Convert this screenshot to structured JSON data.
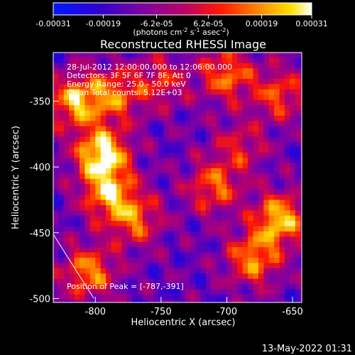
{
  "chart_data": {
    "type": "heatmap",
    "title": "Reconstructed RHESSI Image",
    "xlabel": "Heliocentric X (arcsec)",
    "ylabel": "Heliocentric Y (arcsec)",
    "xlim": [
      -832,
      -643
    ],
    "ylim": [
      -503,
      -313
    ],
    "x_ticks": [
      -800,
      -750,
      -700,
      -650
    ],
    "y_ticks": [
      -350,
      -400,
      -450,
      -500
    ],
    "colorbar": {
      "min": -0.00031,
      "max": 0.00031,
      "tick_values": [
        -0.00031,
        -0.00019,
        -6.2e-05,
        6.2e-05,
        0.00019,
        0.00031
      ],
      "tick_labels": [
        "-0.00031",
        "-0.00019",
        "-6.2e-05",
        "6.2e-05",
        "0.00019",
        "0.00031"
      ],
      "unit_label": "(photons cm-2 s-1 asec-2)"
    },
    "annotations": [
      "28-Jul-2012 12:00:00.000 to 12:06:00.000",
      "Detectors: 3F 5F 6F 7F 8F, Att 0",
      "Energy Range: 25.0 - 50.0 keV",
      "Clean    Total counts: 5.12E+03"
    ],
    "peak_label": "Position of Peak = [-787,-391]",
    "bright_sources": [
      {
        "x": -795,
        "y": -390,
        "amplitude": 1.0
      },
      {
        "x": -815,
        "y": -350,
        "amplitude": 0.8
      },
      {
        "x": -785,
        "y": -345,
        "amplitude": 0.6
      },
      {
        "x": -790,
        "y": -420,
        "amplitude": 0.75
      },
      {
        "x": -770,
        "y": -440,
        "amplitude": 0.6
      },
      {
        "x": -805,
        "y": -480,
        "amplitude": 0.7
      },
      {
        "x": -660,
        "y": -440,
        "amplitude": 0.85
      },
      {
        "x": -680,
        "y": -470,
        "amplitude": 0.7
      },
      {
        "x": -700,
        "y": -330,
        "amplitude": 0.65
      },
      {
        "x": -660,
        "y": -345,
        "amplitude": 0.55
      },
      {
        "x": -710,
        "y": -415,
        "amplitude": 0.6
      },
      {
        "x": -750,
        "y": -335,
        "amplitude": 0.45
      },
      {
        "x": -690,
        "y": -385,
        "amplitude": 0.4
      }
    ]
  },
  "footer": {
    "timestamp": "13-May-2022 01:31"
  }
}
